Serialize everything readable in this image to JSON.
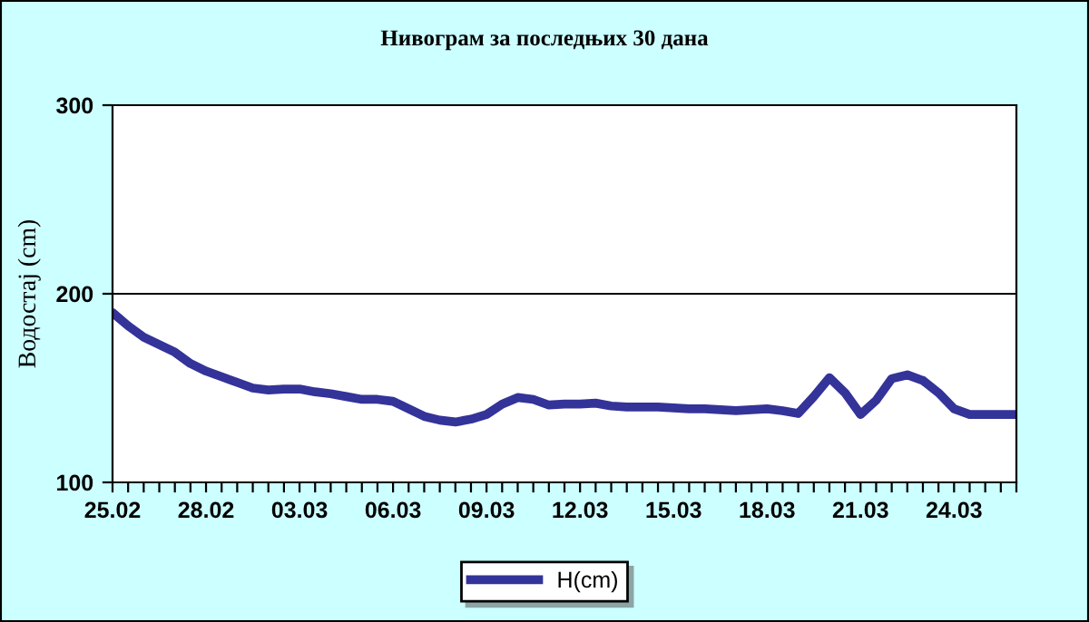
{
  "chart_data": {
    "type": "line",
    "title": "Нивограм за последњих 30 дана",
    "ylabel": "Водостај (cm)",
    "categories": [
      "25.02",
      null,
      null,
      null,
      null,
      null,
      "28.02",
      null,
      null,
      null,
      null,
      null,
      "03.03",
      null,
      null,
      null,
      null,
      null,
      "06.03",
      null,
      null,
      null,
      null,
      null,
      "09.03",
      null,
      null,
      null,
      null,
      null,
      "12.03",
      null,
      null,
      null,
      null,
      null,
      "15.03",
      null,
      null,
      null,
      null,
      null,
      "18.03",
      null,
      null,
      null,
      null,
      null,
      "21.03",
      null,
      null,
      null,
      null,
      null,
      "24.03",
      null,
      null,
      null,
      null
    ],
    "series": [
      {
        "name": "H(cm)",
        "color": "#333399",
        "values": [
          190,
          183,
          177,
          173,
          169,
          163,
          159,
          156,
          153,
          150,
          149,
          149.5,
          149.5,
          148,
          147,
          145.5,
          144,
          144,
          143,
          139,
          135,
          133,
          132,
          133.5,
          136,
          141.5,
          145,
          144,
          141,
          141.5,
          141.5,
          142,
          140.5,
          140,
          140,
          140,
          139.5,
          139,
          139,
          138.5,
          138,
          138.5,
          139,
          138,
          136.5,
          145.5,
          155.5,
          147.5,
          136,
          143.5,
          155,
          157,
          154,
          147.5,
          139,
          136,
          136,
          136,
          136
        ]
      }
    ],
    "ylim": [
      100,
      300
    ],
    "yticks": [
      100,
      200,
      300
    ],
    "grid": "y",
    "legend": "bottom",
    "marker": "none",
    "line_style": "solid"
  }
}
